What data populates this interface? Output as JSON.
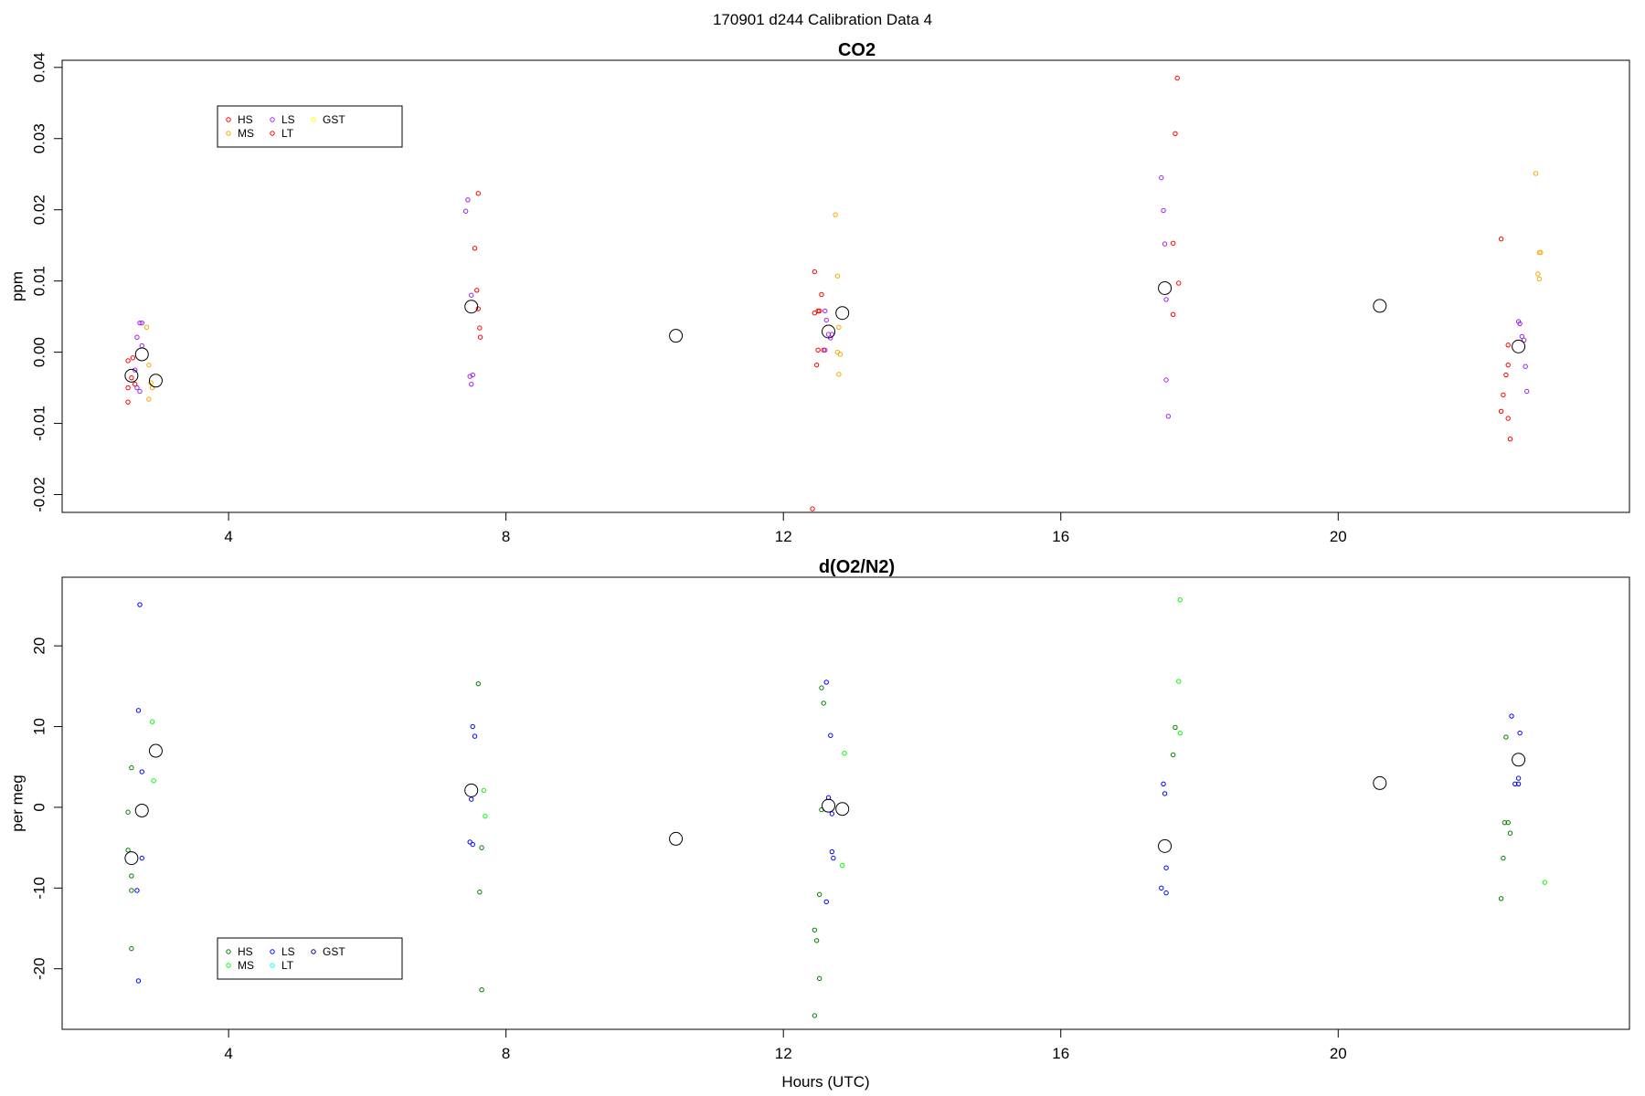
{
  "figure_title": "170901   d244   Calibration Data 4",
  "chart_data": [
    {
      "type": "scatter",
      "title": "CO2",
      "xlabel": "",
      "ylabel": "ppm",
      "xlim": [
        1.6,
        24.2
      ],
      "ylim": [
        -0.0225,
        0.041
      ],
      "x_ticks": [
        4,
        8,
        12,
        16,
        20
      ],
      "x_tick_labels": [
        "4",
        "8",
        "12",
        "16",
        "20"
      ],
      "y_ticks": [
        -0.02,
        -0.01,
        0.0,
        0.01,
        0.02,
        0.03,
        0.04
      ],
      "y_tick_labels": [
        "-0.02",
        "-0.01",
        "0.00",
        "0.01",
        "0.02",
        "0.03",
        "0.04"
      ],
      "legend": {
        "placement": "top-left",
        "entries": [
          {
            "label": "HS",
            "color": "#ff0000"
          },
          {
            "label": "MS",
            "color": "#ffa500"
          },
          {
            "label": "LS",
            "color": "#a020f0"
          },
          {
            "label": "LT",
            "color": "#ff0000"
          },
          {
            "label": "GST",
            "color": "#ffff00"
          }
        ]
      },
      "series": [
        {
          "color": "#ff0000",
          "points": [
            [
              2.55,
              -0.0012
            ],
            [
              2.6,
              -0.0036
            ],
            [
              2.55,
              -0.005
            ],
            [
              2.65,
              -0.0045
            ],
            [
              2.55,
              -0.007
            ],
            [
              2.62,
              -0.0008
            ],
            [
              7.6,
              0.0223
            ],
            [
              7.55,
              0.0146
            ],
            [
              7.58,
              0.0087
            ],
            [
              7.6,
              0.0061
            ],
            [
              7.62,
              0.0034
            ],
            [
              7.63,
              0.0021
            ],
            [
              12.45,
              0.0113
            ],
            [
              12.55,
              0.0081
            ],
            [
              12.5,
              0.0058
            ],
            [
              12.45,
              0.0055
            ],
            [
              12.52,
              0.0058
            ],
            [
              12.5,
              0.0003
            ],
            [
              12.58,
              0.0003
            ],
            [
              12.48,
              -0.0018
            ],
            [
              12.42,
              -0.022
            ],
            [
              17.68,
              0.0385
            ],
            [
              17.65,
              0.0307
            ],
            [
              17.62,
              0.0153
            ],
            [
              17.7,
              0.0097
            ],
            [
              17.62,
              0.0053
            ],
            [
              22.35,
              0.0159
            ],
            [
              22.45,
              0.001
            ],
            [
              22.42,
              -0.0032
            ],
            [
              22.45,
              -0.0018
            ],
            [
              22.38,
              -0.006
            ],
            [
              22.35,
              -0.0083
            ],
            [
              22.45,
              -0.0093
            ],
            [
              22.48,
              -0.0122
            ]
          ]
        },
        {
          "color": "#a020f0",
          "points": [
            [
              2.75,
              0.0041
            ],
            [
              2.72,
              0.0041
            ],
            [
              2.68,
              0.0021
            ],
            [
              2.75,
              0.0009
            ],
            [
              2.65,
              -0.0025
            ],
            [
              2.68,
              -0.005
            ],
            [
              2.72,
              -0.0055
            ],
            [
              7.45,
              0.0214
            ],
            [
              7.42,
              0.0198
            ],
            [
              7.5,
              0.008
            ],
            [
              7.52,
              -0.0032
            ],
            [
              7.48,
              -0.0034
            ],
            [
              7.5,
              -0.0045
            ],
            [
              12.6,
              0.0058
            ],
            [
              12.62,
              0.0045
            ],
            [
              12.6,
              0.0003
            ],
            [
              12.65,
              0.0025
            ],
            [
              12.7,
              0.0025
            ],
            [
              12.68,
              0.002
            ],
            [
              17.45,
              0.0245
            ],
            [
              17.48,
              0.0199
            ],
            [
              17.5,
              0.0152
            ],
            [
              17.52,
              0.0074
            ],
            [
              17.52,
              -0.0039
            ],
            [
              17.55,
              -0.009
            ],
            [
              22.6,
              0.0043
            ],
            [
              22.62,
              0.004
            ],
            [
              22.65,
              0.0022
            ],
            [
              22.68,
              0.0017
            ],
            [
              22.7,
              -0.002
            ],
            [
              22.72,
              -0.0055
            ]
          ]
        },
        {
          "color": "#ffa500",
          "points": [
            [
              2.82,
              0.0035
            ],
            [
              2.85,
              -0.0018
            ],
            [
              2.88,
              -0.0043
            ],
            [
              2.9,
              -0.005
            ],
            [
              2.85,
              -0.0066
            ],
            [
              12.75,
              0.0193
            ],
            [
              12.78,
              0.0107
            ],
            [
              12.8,
              0.0035
            ],
            [
              12.78,
              0.0
            ],
            [
              12.82,
              -0.0003
            ],
            [
              12.8,
              -0.0031
            ],
            [
              22.85,
              0.0251
            ],
            [
              22.9,
              0.014
            ],
            [
              22.92,
              0.014
            ],
            [
              22.88,
              0.011
            ],
            [
              22.9,
              0.0103
            ]
          ]
        }
      ],
      "averages": {
        "color": "#000000",
        "points": [
          [
            2.6,
            -0.0033
          ],
          [
            2.75,
            -0.0003
          ],
          [
            2.95,
            -0.004
          ],
          [
            7.5,
            0.0064
          ],
          [
            10.45,
            0.0023
          ],
          [
            12.65,
            0.0029
          ],
          [
            12.85,
            0.0055
          ],
          [
            17.5,
            0.009
          ],
          [
            20.6,
            0.0065
          ],
          [
            22.6,
            0.0008
          ]
        ]
      }
    },
    {
      "type": "scatter",
      "title": "d(O2/N2)",
      "xlabel": "Hours (UTC)",
      "ylabel": "per meg",
      "xlim": [
        1.6,
        24.2
      ],
      "ylim": [
        -27.5,
        28.5
      ],
      "x_ticks": [
        4,
        8,
        12,
        16,
        20
      ],
      "x_tick_labels": [
        "4",
        "8",
        "12",
        "16",
        "20"
      ],
      "y_ticks": [
        -20,
        -10,
        0,
        10,
        20
      ],
      "y_tick_labels": [
        "-20",
        "-10",
        "0",
        "10",
        "20"
      ],
      "legend": {
        "placement": "bottom-left",
        "entries": [
          {
            "label": "HS",
            "color": "#008000"
          },
          {
            "label": "MS",
            "color": "#00ff00"
          },
          {
            "label": "LS",
            "color": "#0000ff"
          },
          {
            "label": "LT",
            "color": "#00ffff"
          },
          {
            "label": "GST",
            "color": "#00008b"
          }
        ]
      },
      "series": [
        {
          "color": "#008000",
          "points": [
            [
              2.6,
              4.9
            ],
            [
              2.55,
              -0.6
            ],
            [
              2.55,
              -5.3
            ],
            [
              2.6,
              -8.5
            ],
            [
              2.6,
              -10.3
            ],
            [
              2.6,
              -17.5
            ],
            [
              7.6,
              15.3
            ],
            [
              7.65,
              -5.0
            ],
            [
              7.62,
              -10.5
            ],
            [
              7.65,
              -22.6
            ],
            [
              12.55,
              14.8
            ],
            [
              12.58,
              12.9
            ],
            [
              12.55,
              -0.3
            ],
            [
              12.52,
              -10.8
            ],
            [
              12.45,
              -15.2
            ],
            [
              12.48,
              -16.5
            ],
            [
              12.52,
              -21.2
            ],
            [
              12.45,
              -25.8
            ],
            [
              17.65,
              9.9
            ],
            [
              17.62,
              6.5
            ],
            [
              22.42,
              8.7
            ],
            [
              22.4,
              -1.9
            ],
            [
              22.45,
              -1.9
            ],
            [
              22.48,
              -3.2
            ],
            [
              22.38,
              -6.3
            ],
            [
              22.35,
              -11.3
            ]
          ]
        },
        {
          "color": "#00ff00",
          "points": [
            [
              2.9,
              10.6
            ],
            [
              2.92,
              3.3
            ],
            [
              7.68,
              2.1
            ],
            [
              7.7,
              -1.1
            ],
            [
              12.88,
              6.7
            ],
            [
              12.85,
              -7.2
            ],
            [
              17.72,
              25.7
            ],
            [
              17.7,
              15.6
            ],
            [
              17.72,
              9.2
            ],
            [
              22.98,
              -9.3
            ]
          ]
        },
        {
          "color": "#0000ff",
          "points": [
            [
              2.72,
              25.1
            ],
            [
              2.7,
              12.0
            ],
            [
              2.75,
              4.4
            ],
            [
              2.75,
              -6.3
            ],
            [
              2.68,
              -10.3
            ],
            [
              2.7,
              -21.5
            ],
            [
              7.52,
              10.0
            ],
            [
              7.55,
              8.8
            ],
            [
              7.5,
              1.0
            ],
            [
              7.48,
              -4.3
            ],
            [
              7.52,
              -4.6
            ],
            [
              12.62,
              15.5
            ],
            [
              12.68,
              8.9
            ],
            [
              12.65,
              1.2
            ],
            [
              12.7,
              -0.8
            ],
            [
              12.7,
              -5.5
            ],
            [
              12.72,
              -6.3
            ],
            [
              12.62,
              -11.7
            ],
            [
              17.48,
              2.9
            ],
            [
              17.5,
              1.7
            ],
            [
              17.52,
              -7.5
            ],
            [
              17.45,
              -10.0
            ],
            [
              17.52,
              -10.6
            ],
            [
              22.5,
              11.3
            ],
            [
              22.62,
              9.2
            ],
            [
              22.6,
              3.6
            ],
            [
              22.55,
              2.9
            ],
            [
              22.6,
              2.9
            ]
          ]
        }
      ],
      "averages": {
        "color": "#000000",
        "points": [
          [
            2.6,
            -6.3
          ],
          [
            2.75,
            -0.4
          ],
          [
            2.95,
            7.0
          ],
          [
            7.5,
            2.1
          ],
          [
            10.45,
            -3.9
          ],
          [
            12.65,
            0.2
          ],
          [
            12.85,
            -0.2
          ],
          [
            17.5,
            -4.8
          ],
          [
            20.6,
            3.0
          ],
          [
            22.6,
            5.9
          ]
        ]
      }
    }
  ]
}
